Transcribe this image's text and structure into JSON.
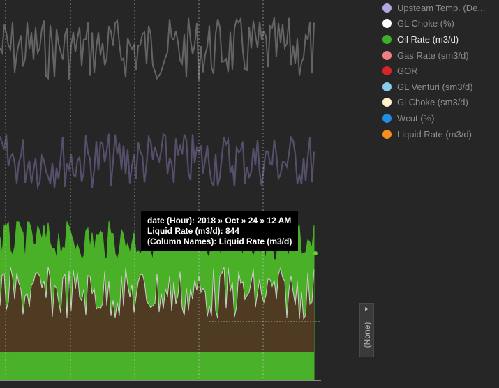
{
  "legend": {
    "items": [
      {
        "label": "Upsteam Temp. (De...",
        "color": "#b4a8e0",
        "active": false
      },
      {
        "label": "GL Choke (%)",
        "color": "#ffffff",
        "active": false
      },
      {
        "label": "Oil Rate (m3/d)",
        "color": "#3fae29",
        "active": true
      },
      {
        "label": "Gas Rate (sm3/d)",
        "color": "#f08080",
        "active": false
      },
      {
        "label": "GOR",
        "color": "#d62728",
        "active": false
      },
      {
        "label": "GL Venturi (sm3/d)",
        "color": "#87ceeb",
        "active": false
      },
      {
        "label": "Gl Choke (sm3/d)",
        "color": "#fff3c7",
        "active": false
      },
      {
        "label": "Wcut (%)",
        "color": "#1f8fe0",
        "active": false
      },
      {
        "label": "Liquid Rate (m3/d)",
        "color": "#f5901e",
        "active": false
      }
    ]
  },
  "tooltip": {
    "line1": "date (Hour): 2018 » Oct » 24 » 12 AM",
    "line2": "Liquid Rate (m3/d): 844",
    "line3": "(Column Names): Liquid Rate (m3/d)"
  },
  "side_panel": {
    "label": "(None)",
    "arrow_icon": "chevron-right-icon"
  },
  "colors": {
    "background": "#262626",
    "liquid_fill": "#4e3b22",
    "oil_fill": "#4cb828",
    "wcut_fill": "#2c4a5c",
    "temp_fill": "#5a5070",
    "glchoke_line": "#6b6b6b"
  }
}
